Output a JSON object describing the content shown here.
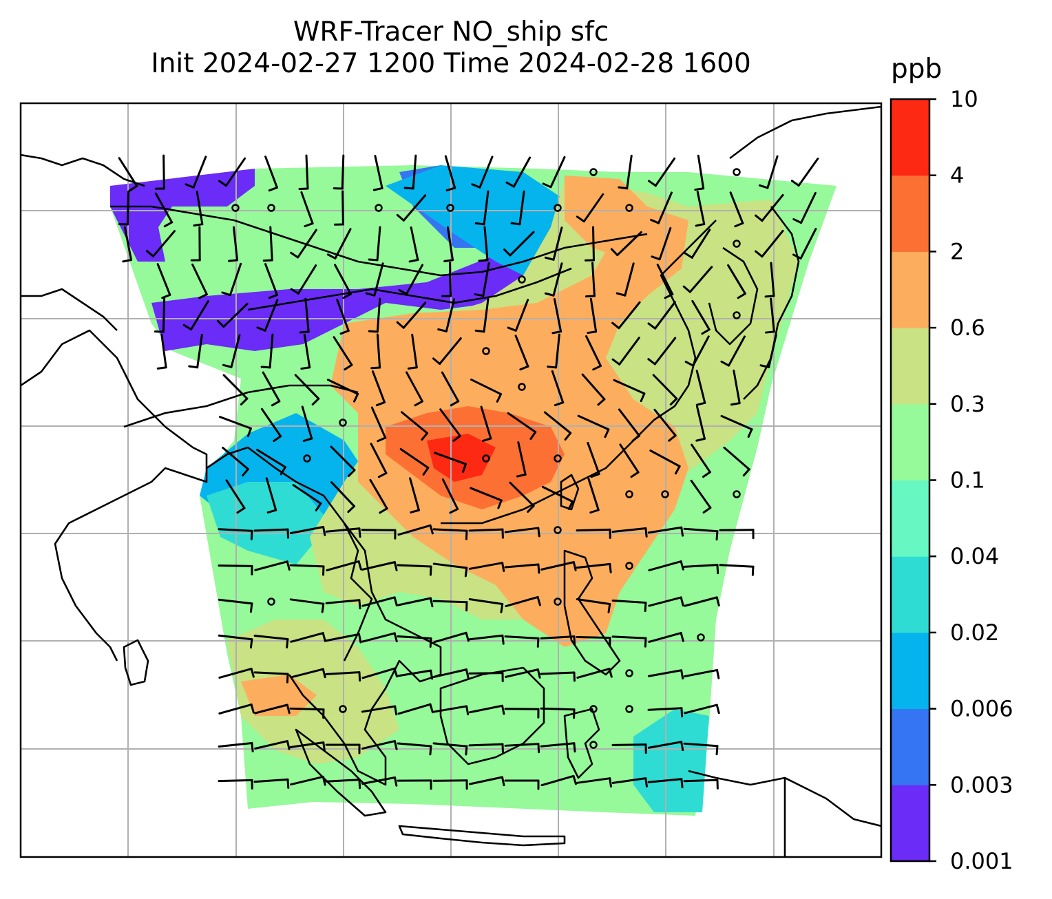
{
  "title": {
    "line1": "WRF-Tracer NO_ship sfc",
    "line2": "Init 2024-02-27 1200 Time 2024-02-28 1600"
  },
  "colorbar": {
    "units": "ppb",
    "levels": [
      "0.001",
      "0.003",
      "0.006",
      "0.02",
      "0.04",
      "0.1",
      "0.3",
      "0.6",
      "2",
      "4",
      "10"
    ],
    "colors": [
      "#6a2cf6",
      "#3574f2",
      "#05b3ed",
      "#2fdcd4",
      "#66f7c3",
      "#96f99a",
      "#c9e283",
      "#fcae5e",
      "#fd7034",
      "#fd2913"
    ]
  },
  "map": {
    "land_mask_color": "#ffffff",
    "gridline_color": "#b0b0b0",
    "coastline_color": "#000000",
    "wind_barb_color": "#000000"
  }
}
